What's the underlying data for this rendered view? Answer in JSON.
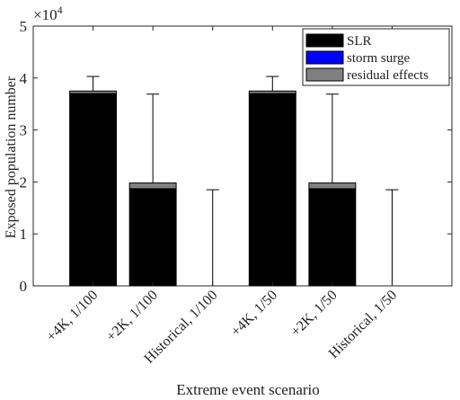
{
  "chart_data": {
    "type": "bar",
    "stacked": true,
    "categories": [
      "+4K, 1/100",
      "+2K, 1/100",
      "Historical, 1/100",
      "+4K, 1/50",
      "+2K, 1/50",
      "Historical, 1/50"
    ],
    "series": [
      {
        "name": "SLR",
        "color": "#000000",
        "values": [
          37000,
          18700,
          0,
          37000,
          18700,
          0
        ]
      },
      {
        "name": "storm surge",
        "color": "#0000ff",
        "values": [
          0,
          0,
          0,
          0,
          0,
          0
        ]
      },
      {
        "name": "residual effects",
        "color": "#808080",
        "values": [
          500,
          1100,
          0,
          500,
          1100,
          0
        ]
      }
    ],
    "error_bars": {
      "upper": [
        40300,
        36900,
        18500,
        40300,
        36900,
        18500
      ],
      "lower": [
        0,
        0,
        0,
        0,
        0,
        0
      ]
    },
    "xlabel": "Extreme event scenario",
    "ylabel": "Exposed population number",
    "ylim": [
      0,
      50000
    ],
    "yticks": [
      0,
      10000,
      20000,
      30000,
      40000,
      50000
    ],
    "ytick_labels": [
      "0",
      "1",
      "2",
      "3",
      "4",
      "5"
    ],
    "y_multiplier_base": "×10",
    "y_multiplier_exp": "4",
    "legend_position": "top-right",
    "grid": false
  }
}
